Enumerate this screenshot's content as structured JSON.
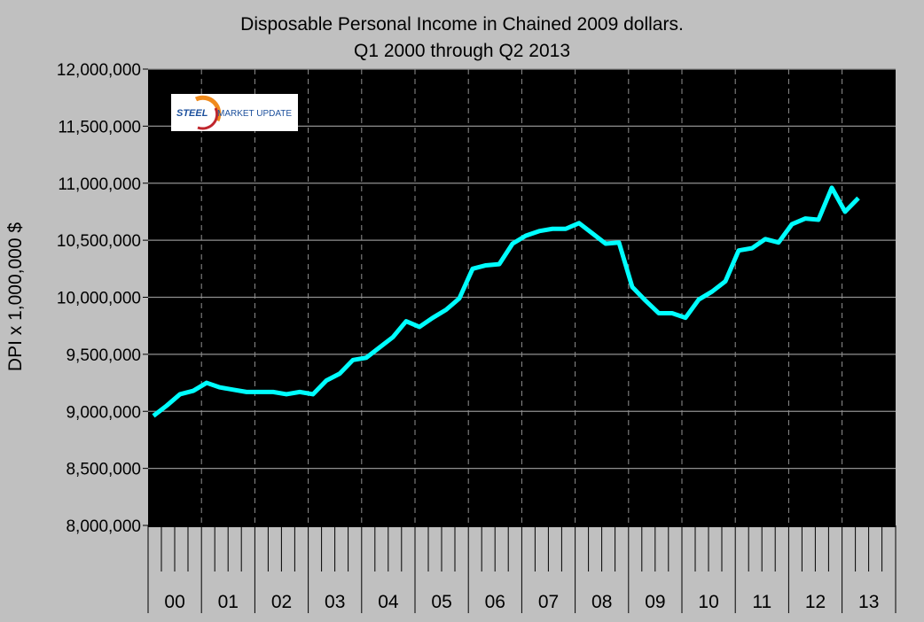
{
  "chart_data": {
    "type": "line",
    "title": "Disposable Personal Income in Chained 2009 dollars.",
    "subtitle": "Q1 2000 through Q2 2013",
    "ylabel": "DPI x 1,000,000 $",
    "xlabel": "",
    "ylim": [
      8000000,
      12000000
    ],
    "yticks": [
      "8,000,000",
      "8,500,000",
      "9,000,000",
      "9,500,000",
      "10,000,000",
      "10,500,000",
      "11,000,000",
      "11,500,000",
      "12,000,000"
    ],
    "year_labels": [
      "00",
      "01",
      "02",
      "03",
      "04",
      "05",
      "06",
      "07",
      "08",
      "09",
      "10",
      "11",
      "12",
      "13"
    ],
    "grid": true,
    "line_color": "#00ffff",
    "plot_background": "#000000",
    "values": [
      8960000,
      9050000,
      9150000,
      9180000,
      9250000,
      9210000,
      9190000,
      9170000,
      9170000,
      9170000,
      9150000,
      9170000,
      9150000,
      9270000,
      9330000,
      9450000,
      9470000,
      9560000,
      9650000,
      9790000,
      9740000,
      9820000,
      9890000,
      9990000,
      10250000,
      10280000,
      10290000,
      10470000,
      10540000,
      10580000,
      10600000,
      10600000,
      10650000,
      10560000,
      10470000,
      10480000,
      10090000,
      9970000,
      9860000,
      9860000,
      9820000,
      9980000,
      10050000,
      10140000,
      10410000,
      10430000,
      10510000,
      10480000,
      10640000,
      10690000,
      10680000,
      10960000,
      10750000,
      10870000
    ]
  },
  "logo": {
    "text_steel": "STEEL",
    "text_rest": "MARKET UPDATE"
  }
}
